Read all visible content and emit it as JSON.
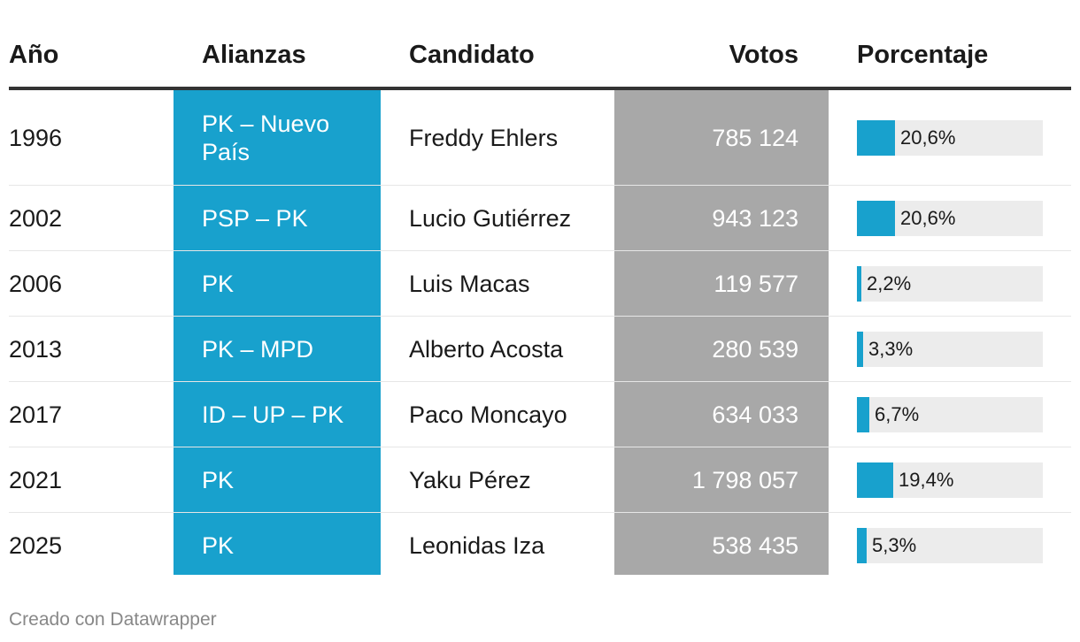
{
  "chart_data": {
    "type": "table",
    "columns": [
      "Año",
      "Alianzas",
      "Candidato",
      "Votos",
      "Porcentaje"
    ],
    "rows": [
      {
        "anio": "1996",
        "alianza": "PK – Nuevo País",
        "candidato": "Freddy Ehlers",
        "votos": "785 124",
        "porcentaje": 20.6,
        "porcentaje_label": "20,6%"
      },
      {
        "anio": "2002",
        "alianza": "PSP – PK",
        "candidato": "Lucio Gutiérrez",
        "votos": "943 123",
        "porcentaje": 20.6,
        "porcentaje_label": "20,6%"
      },
      {
        "anio": "2006",
        "alianza": "PK",
        "candidato": "Luis Macas",
        "votos": "119 577",
        "porcentaje": 2.2,
        "porcentaje_label": "2,2%"
      },
      {
        "anio": "2013",
        "alianza": "PK – MPD",
        "candidato": "Alberto Acosta",
        "votos": "280 539",
        "porcentaje": 3.3,
        "porcentaje_label": "3,3%"
      },
      {
        "anio": "2017",
        "alianza": "ID – UP – PK",
        "candidato": "Paco Moncayo",
        "votos": "634 033",
        "porcentaje": 6.7,
        "porcentaje_label": "6,7%"
      },
      {
        "anio": "2021",
        "alianza": "PK",
        "candidato": "Yaku Pérez",
        "votos": "1 798 057",
        "porcentaje": 19.4,
        "porcentaje_label": "19,4%"
      },
      {
        "anio": "2025",
        "alianza": "PK",
        "candidato": "Leonidas Iza",
        "votos": "538 435",
        "porcentaje": 5.3,
        "porcentaje_label": "5,3%"
      }
    ],
    "bar_max": 100,
    "colors": {
      "alianzas_column": "#18a1cd",
      "votos_column": "#a8a8a8",
      "bar": "#18a1cd",
      "bar_track": "#ececec"
    }
  },
  "footer": {
    "text": "Creado con Datawrapper"
  }
}
